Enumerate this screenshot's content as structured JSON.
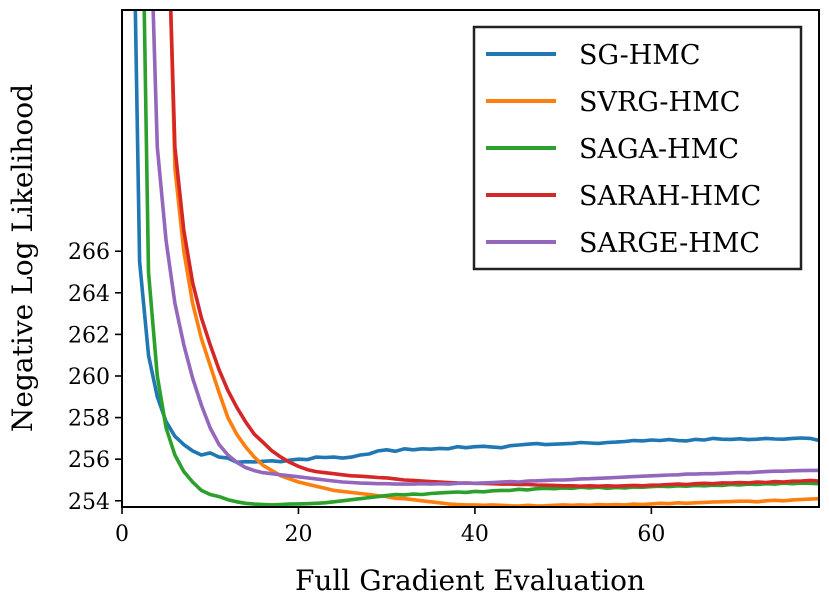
{
  "chart_data": {
    "type": "line",
    "xlabel": "Full Gradient Evaluation",
    "ylabel": "Negative Log Likelihood",
    "xlim": [
      0,
      79
    ],
    "ylim": [
      253.7,
      277.6
    ],
    "xticks": [
      0,
      20,
      40,
      60
    ],
    "yticks": [
      254,
      256,
      258,
      260,
      262,
      264,
      266
    ],
    "grid": false,
    "legend_position": "top-right",
    "series": [
      {
        "name": "SG-HMC",
        "color": "#1f77b4",
        "x": [
          1.5,
          2,
          3,
          4,
          5,
          6,
          7,
          8,
          9,
          10,
          11,
          12,
          13,
          14,
          15,
          16,
          17,
          18,
          19,
          20,
          21,
          22,
          23,
          24,
          25,
          26,
          27,
          28,
          29,
          30,
          31,
          32,
          33,
          34,
          35,
          36,
          37,
          38,
          39,
          40,
          41,
          42,
          43,
          44,
          45,
          46,
          47,
          48,
          49,
          50,
          51,
          52,
          53,
          54,
          55,
          56,
          57,
          58,
          59,
          60,
          61,
          62,
          63,
          64,
          65,
          66,
          67,
          68,
          69,
          70,
          71,
          72,
          73,
          74,
          75,
          76,
          77,
          78,
          79
        ],
        "y": [
          278,
          265.5,
          261.0,
          259.0,
          257.8,
          257.1,
          256.7,
          256.4,
          256.2,
          256.3,
          256.1,
          256.05,
          255.85,
          255.88,
          255.87,
          255.9,
          255.92,
          255.88,
          255.95,
          256.0,
          255.98,
          256.1,
          256.08,
          256.1,
          256.05,
          256.1,
          256.2,
          256.25,
          256.4,
          256.45,
          256.38,
          256.5,
          256.45,
          256.5,
          256.48,
          256.52,
          256.5,
          256.6,
          256.55,
          256.6,
          256.62,
          256.58,
          256.55,
          256.65,
          256.68,
          256.72,
          256.75,
          256.7,
          256.72,
          256.74,
          256.76,
          256.8,
          256.78,
          256.76,
          256.8,
          256.82,
          256.85,
          256.9,
          256.88,
          256.92,
          256.9,
          256.94,
          256.9,
          256.88,
          256.95,
          256.92,
          257.0,
          256.96,
          256.95,
          256.98,
          256.94,
          256.96,
          257.0,
          256.97,
          256.96,
          257.0,
          257.02,
          257.0,
          256.9
        ]
      },
      {
        "name": "SVRG-HMC",
        "color": "#ff7f0e",
        "x": [
          5.5,
          6,
          7,
          8,
          9,
          10,
          11,
          12,
          13,
          14,
          15,
          16,
          17,
          18,
          19,
          20,
          21,
          22,
          23,
          24,
          25,
          26,
          27,
          28,
          29,
          30,
          31,
          32,
          33,
          34,
          35,
          36,
          37,
          38,
          39,
          40,
          41,
          42,
          43,
          44,
          45,
          46,
          47,
          48,
          49,
          50,
          51,
          52,
          53,
          54,
          55,
          56,
          57,
          58,
          59,
          60,
          61,
          62,
          63,
          64,
          65,
          66,
          67,
          68,
          69,
          70,
          71,
          72,
          73,
          74,
          75,
          76,
          77,
          78,
          79
        ],
        "y": [
          278,
          270.0,
          266.0,
          263.5,
          261.8,
          260.5,
          259.2,
          258.0,
          257.2,
          256.6,
          256.1,
          255.7,
          255.45,
          255.2,
          255.05,
          254.9,
          254.8,
          254.7,
          254.6,
          254.5,
          254.45,
          254.4,
          254.35,
          254.3,
          254.25,
          254.2,
          254.12,
          254.1,
          254.05,
          254.0,
          253.95,
          253.9,
          253.85,
          253.82,
          253.8,
          253.8,
          253.78,
          253.8,
          253.78,
          253.76,
          253.75,
          253.78,
          253.75,
          253.76,
          253.78,
          253.8,
          253.78,
          253.8,
          253.78,
          253.82,
          253.8,
          253.82,
          253.8,
          253.84,
          253.82,
          253.85,
          253.88,
          253.86,
          253.9,
          253.88,
          253.9,
          253.92,
          253.94,
          253.95,
          253.96,
          253.98,
          253.98,
          253.95,
          254.0,
          254.02,
          254.0,
          254.04,
          254.06,
          254.08,
          254.1
        ]
      },
      {
        "name": "SAGA-HMC",
        "color": "#2ca02c",
        "x": [
          2.5,
          3,
          4,
          5,
          6,
          7,
          8,
          9,
          10,
          11,
          12,
          13,
          14,
          15,
          16,
          17,
          18,
          19,
          20,
          21,
          22,
          23,
          24,
          25,
          26,
          27,
          28,
          29,
          30,
          31,
          32,
          33,
          34,
          35,
          36,
          37,
          38,
          39,
          40,
          41,
          42,
          43,
          44,
          45,
          46,
          47,
          48,
          49,
          50,
          51,
          52,
          53,
          54,
          55,
          56,
          57,
          58,
          59,
          60,
          61,
          62,
          63,
          64,
          65,
          66,
          67,
          68,
          69,
          70,
          71,
          72,
          73,
          74,
          75,
          76,
          77,
          78,
          79
        ],
        "y": [
          278,
          265.0,
          260.0,
          257.5,
          256.2,
          255.4,
          254.9,
          254.5,
          254.3,
          254.2,
          254.05,
          253.95,
          253.88,
          253.84,
          253.82,
          253.8,
          253.82,
          253.84,
          253.85,
          253.86,
          253.88,
          253.9,
          253.95,
          254.0,
          254.05,
          254.1,
          254.15,
          254.2,
          254.25,
          254.3,
          254.28,
          254.32,
          254.3,
          254.35,
          254.38,
          254.4,
          254.42,
          254.4,
          254.45,
          254.43,
          254.48,
          254.5,
          254.5,
          254.55,
          254.52,
          254.58,
          254.6,
          254.58,
          254.62,
          254.6,
          254.65,
          254.62,
          254.65,
          254.6,
          254.64,
          254.62,
          254.66,
          254.65,
          254.68,
          254.7,
          254.68,
          254.72,
          254.7,
          254.74,
          254.72,
          254.75,
          254.74,
          254.78,
          254.76,
          254.8,
          254.78,
          254.82,
          254.8,
          254.85,
          254.82,
          254.85,
          254.84,
          254.82
        ]
      },
      {
        "name": "SARAH-HMC",
        "color": "#d62728",
        "x": [
          5.5,
          6,
          7,
          8,
          9,
          10,
          11,
          12,
          13,
          14,
          15,
          16,
          17,
          18,
          19,
          20,
          21,
          22,
          23,
          24,
          25,
          26,
          27,
          28,
          29,
          30,
          31,
          32,
          33,
          34,
          35,
          36,
          37,
          38,
          39,
          40,
          41,
          42,
          43,
          44,
          45,
          46,
          47,
          48,
          49,
          50,
          51,
          52,
          53,
          54,
          55,
          56,
          57,
          58,
          59,
          60,
          61,
          62,
          63,
          64,
          65,
          66,
          67,
          68,
          69,
          70,
          71,
          72,
          73,
          74,
          75,
          76,
          77,
          78,
          79
        ],
        "y": [
          278,
          271.0,
          267.0,
          264.5,
          262.8,
          261.5,
          260.3,
          259.3,
          258.5,
          257.8,
          257.2,
          256.8,
          256.4,
          256.1,
          255.85,
          255.65,
          255.5,
          255.4,
          255.35,
          255.3,
          255.25,
          255.2,
          255.18,
          255.15,
          255.12,
          255.1,
          255.05,
          255.0,
          254.98,
          254.95,
          254.92,
          254.9,
          254.88,
          254.86,
          254.85,
          254.84,
          254.83,
          254.82,
          254.8,
          254.8,
          254.78,
          254.78,
          254.76,
          254.75,
          254.74,
          254.72,
          254.72,
          254.7,
          254.72,
          254.7,
          254.72,
          254.7,
          254.72,
          254.74,
          254.72,
          254.75,
          254.76,
          254.78,
          254.8,
          254.78,
          254.82,
          254.84,
          254.82,
          254.86,
          254.85,
          254.88,
          254.86,
          254.9,
          254.88,
          254.92,
          254.9,
          254.94,
          254.95,
          254.98,
          254.95
        ]
      },
      {
        "name": "SARGE-HMC",
        "color": "#9467bd",
        "x": [
          3.5,
          4,
          5,
          6,
          7,
          8,
          9,
          10,
          11,
          12,
          13,
          14,
          15,
          16,
          17,
          18,
          19,
          20,
          21,
          22,
          23,
          24,
          25,
          26,
          27,
          28,
          29,
          30,
          31,
          32,
          33,
          34,
          35,
          36,
          37,
          38,
          39,
          40,
          41,
          42,
          43,
          44,
          45,
          46,
          47,
          48,
          49,
          50,
          51,
          52,
          53,
          54,
          55,
          56,
          57,
          58,
          59,
          60,
          61,
          62,
          63,
          64,
          65,
          66,
          67,
          68,
          69,
          70,
          71,
          72,
          73,
          74,
          75,
          76,
          77,
          78,
          79
        ],
        "y": [
          278,
          271.0,
          266.5,
          263.5,
          261.5,
          259.9,
          258.6,
          257.5,
          256.7,
          256.2,
          255.85,
          255.6,
          255.45,
          255.35,
          255.3,
          255.25,
          255.2,
          255.15,
          255.1,
          255.05,
          255.0,
          254.95,
          254.9,
          254.88,
          254.85,
          254.84,
          254.82,
          254.82,
          254.8,
          254.8,
          254.8,
          254.82,
          254.8,
          254.82,
          254.8,
          254.84,
          254.85,
          254.84,
          254.86,
          254.88,
          254.9,
          254.92,
          254.9,
          254.95,
          254.96,
          254.98,
          255.0,
          255.0,
          255.02,
          255.05,
          255.06,
          255.08,
          255.1,
          255.12,
          255.14,
          255.16,
          255.18,
          255.2,
          255.22,
          255.24,
          255.25,
          255.28,
          255.28,
          255.3,
          255.3,
          255.32,
          255.34,
          255.36,
          255.35,
          255.38,
          255.4,
          255.42,
          255.42,
          255.44,
          255.45,
          255.46,
          255.46
        ]
      }
    ]
  }
}
